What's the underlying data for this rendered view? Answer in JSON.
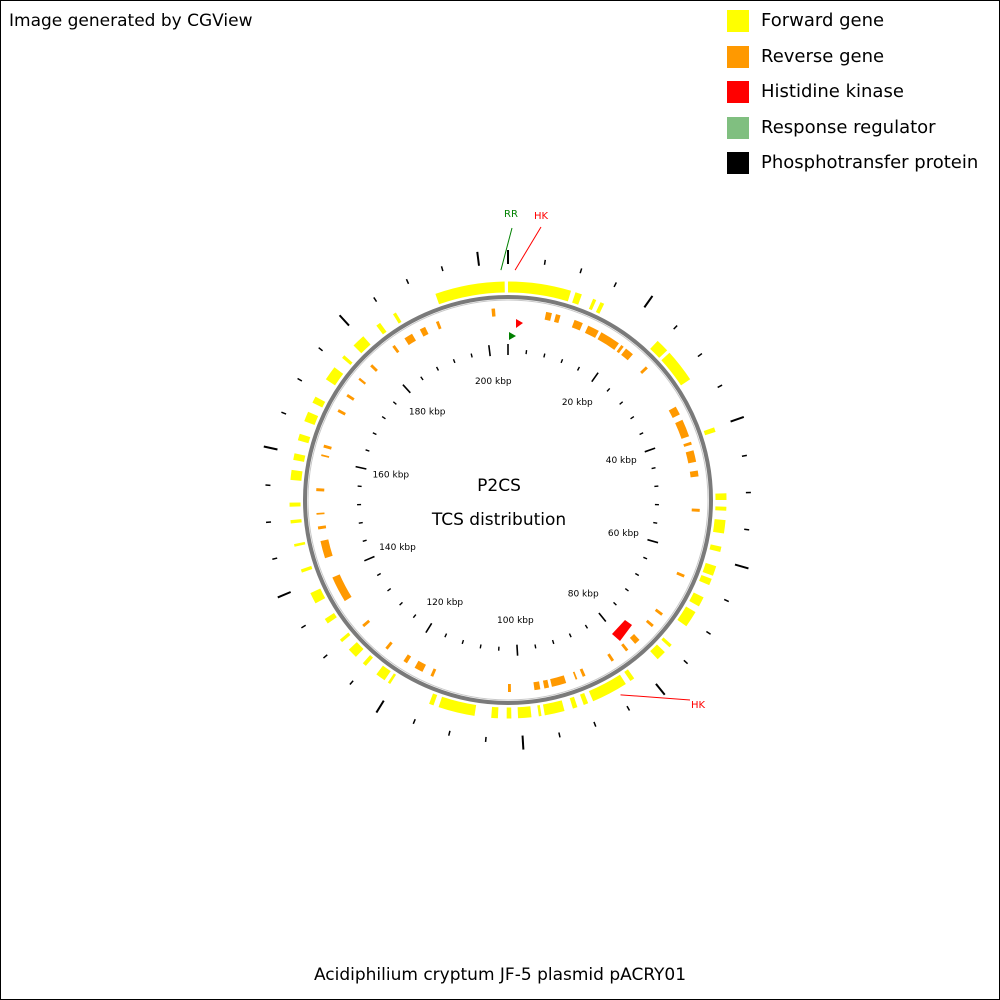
{
  "header": {
    "credit": "Image generated by CGView"
  },
  "legend": [
    {
      "label": "Forward gene",
      "color": "#ffff00"
    },
    {
      "label": "Reverse gene",
      "color": "#ff9900"
    },
    {
      "label": "Histidine kinase",
      "color": "#ff0000"
    },
    {
      "label": "Response regulator",
      "color": "#80bf80"
    },
    {
      "label": "Phosphotransfer protein",
      "color": "#000000"
    }
  ],
  "map": {
    "title_line1": "P2CS",
    "title_line2": "TCS distribution",
    "sequence_length_kbp": 204,
    "scale_labels": [
      {
        "kbp": 20,
        "text": "20 kbp"
      },
      {
        "kbp": 40,
        "text": "40 kbp"
      },
      {
        "kbp": 60,
        "text": "60 kbp"
      },
      {
        "kbp": 80,
        "text": "80 kbp"
      },
      {
        "kbp": 100,
        "text": "100 kbp"
      },
      {
        "kbp": 120,
        "text": "120 kbp"
      },
      {
        "kbp": 140,
        "text": "140 kbp"
      },
      {
        "kbp": 160,
        "text": "160 kbp"
      },
      {
        "kbp": 180,
        "text": "180 kbp"
      },
      {
        "kbp": 200,
        "text": "200 kbp"
      }
    ],
    "tcs_features": [
      {
        "label": "RR",
        "type": "Response regulator",
        "kbp": 203.0,
        "color": "#008000"
      },
      {
        "label": "HK",
        "type": "Histidine kinase",
        "kbp": 1.0,
        "color": "#ff0000"
      },
      {
        "label": "HK",
        "type": "Histidine kinase",
        "kbp": 85.0,
        "color": "#ff0000"
      }
    ],
    "forward_genes_kbp": [
      [
        193.0,
        203.5
      ],
      [
        0.0,
        9.5
      ],
      [
        10.2,
        11.2
      ],
      [
        13.0,
        13.5
      ],
      [
        14.2,
        14.8
      ],
      [
        24.5,
        26.5
      ],
      [
        27.0,
        32.0
      ],
      [
        40.0,
        40.7
      ],
      [
        50.0,
        51.0
      ],
      [
        52.0,
        52.6
      ],
      [
        54.0,
        56.0
      ],
      [
        58.0,
        58.8
      ],
      [
        61.0,
        62.5
      ],
      [
        63.0,
        64.0
      ],
      [
        66.0,
        67.5
      ],
      [
        68.5,
        71.0
      ],
      [
        74.5,
        75.0
      ],
      [
        76.0,
        77.5
      ],
      [
        82.0,
        82.7
      ],
      [
        83.5,
        89.0
      ],
      [
        89.8,
        90.5
      ],
      [
        91.5,
        92.2
      ],
      [
        93.5,
        96.5
      ],
      [
        97.0,
        97.4
      ],
      [
        98.5,
        100.5
      ],
      [
        101.5,
        102.2
      ],
      [
        103.5,
        104.5
      ],
      [
        107.0,
        112.5
      ],
      [
        113.3,
        114.0
      ],
      [
        120.5,
        120.9
      ],
      [
        121.5,
        123.0
      ],
      [
        125.0,
        125.6
      ],
      [
        127.0,
        128.5
      ],
      [
        130.0,
        130.5
      ],
      [
        133.5,
        134.3
      ],
      [
        137.0,
        138.7
      ],
      [
        142.0,
        142.5
      ],
      [
        146.0,
        146.4
      ],
      [
        149.5,
        150.0
      ],
      [
        152.0,
        152.6
      ],
      [
        156.0,
        157.5
      ],
      [
        159.0,
        160.0
      ],
      [
        162.0,
        163.0
      ],
      [
        165.0,
        166.5
      ],
      [
        168.0,
        169.0
      ],
      [
        172.0,
        174.2
      ],
      [
        176.0,
        176.5
      ],
      [
        178.5,
        180.5
      ],
      [
        183.0,
        183.7
      ],
      [
        186.0,
        186.5
      ]
    ],
    "reverse_genes_kbp": [
      [
        201.2,
        201.6
      ],
      [
        6.5,
        7.5
      ],
      [
        8.2,
        9.0
      ],
      [
        11.5,
        13.0
      ],
      [
        14.0,
        16.0
      ],
      [
        16.5,
        20.0
      ],
      [
        20.5,
        21.0
      ],
      [
        21.5,
        23.0
      ],
      [
        26.0,
        26.5
      ],
      [
        34.5,
        36.0
      ],
      [
        37.0,
        40.0
      ],
      [
        41.0,
        41.5
      ],
      [
        42.5,
        44.5
      ],
      [
        46.0,
        47.0
      ],
      [
        52.5,
        53.0
      ],
      [
        64.0,
        64.5
      ],
      [
        71.5,
        72.0
      ],
      [
        74.0,
        74.5
      ],
      [
        77.5,
        78.5
      ],
      [
        80.0,
        80.5
      ],
      [
        83.0,
        83.5
      ],
      [
        88.5,
        89.0
      ],
      [
        90.0,
        90.3
      ],
      [
        92.0,
        94.5
      ],
      [
        95.0,
        95.8
      ],
      [
        96.5,
        97.5
      ],
      [
        101.5,
        102.0
      ],
      [
        115.0,
        115.5
      ],
      [
        117.0,
        118.5
      ],
      [
        120.0,
        120.7
      ],
      [
        124.0,
        124.5
      ],
      [
        129.5,
        130.0
      ],
      [
        135.0,
        139.5
      ],
      [
        143.0,
        146.0
      ],
      [
        148.0,
        148.5
      ],
      [
        150.5,
        150.8
      ],
      [
        154.5,
        155.0
      ],
      [
        160.5,
        160.8
      ],
      [
        162.0,
        162.5
      ],
      [
        168.5,
        169.0
      ],
      [
        171.5,
        172.0
      ],
      [
        175.0,
        175.4
      ],
      [
        178.0,
        178.5
      ],
      [
        183.0,
        183.5
      ],
      [
        185.5,
        187.0
      ],
      [
        188.5,
        189.5
      ],
      [
        191.5,
        192.0
      ],
      [
        201.5,
        201.8
      ]
    ]
  },
  "footer": {
    "organism": "Acidiphilium cryptum JF-5 plasmid pACRY01"
  }
}
